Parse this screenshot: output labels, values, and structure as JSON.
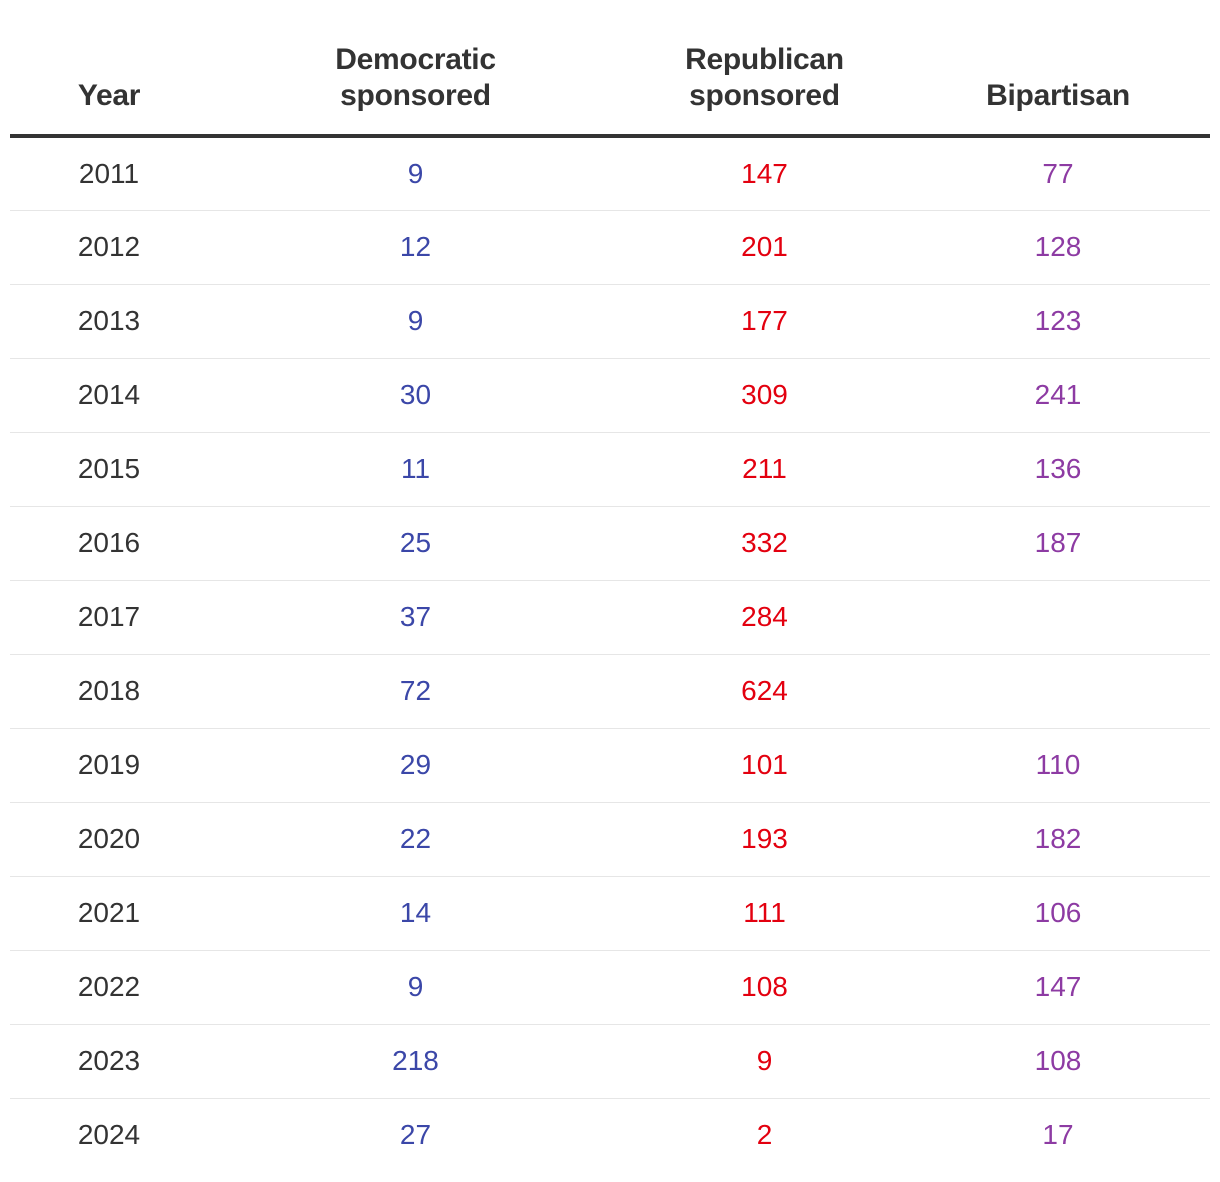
{
  "colors": {
    "header_text": "#333333",
    "year_text": "#333333",
    "democratic": "#3b47a8",
    "republican": "#e3000f",
    "bipartisan": "#8d3ba3",
    "row_divider": "#e6e6e6",
    "header_rule": "#333333"
  },
  "headers": {
    "year": "Year",
    "democratic_line1": "Democratic",
    "democratic_line2": "sponsored",
    "republican_line1": "Republican",
    "republican_line2": "sponsored",
    "bipartisan": "Bipartisan"
  },
  "chart_data": {
    "type": "table",
    "columns": [
      "Year",
      "Democratic sponsored",
      "Republican sponsored",
      "Bipartisan"
    ],
    "rows": [
      {
        "year": "2011",
        "democratic": "9",
        "republican": "147",
        "bipartisan": "77"
      },
      {
        "year": "2012",
        "democratic": "12",
        "republican": "201",
        "bipartisan": "128"
      },
      {
        "year": "2013",
        "democratic": "9",
        "republican": "177",
        "bipartisan": "123"
      },
      {
        "year": "2014",
        "democratic": "30",
        "republican": "309",
        "bipartisan": "241"
      },
      {
        "year": "2015",
        "democratic": "11",
        "republican": "211",
        "bipartisan": "136"
      },
      {
        "year": "2016",
        "democratic": "25",
        "republican": "332",
        "bipartisan": "187"
      },
      {
        "year": "2017",
        "democratic": "37",
        "republican": "284",
        "bipartisan": ""
      },
      {
        "year": "2018",
        "democratic": "72",
        "republican": "624",
        "bipartisan": ""
      },
      {
        "year": "2019",
        "democratic": "29",
        "republican": "101",
        "bipartisan": "110"
      },
      {
        "year": "2020",
        "democratic": "22",
        "republican": "193",
        "bipartisan": "182"
      },
      {
        "year": "2021",
        "democratic": "14",
        "republican": "111",
        "bipartisan": "106"
      },
      {
        "year": "2022",
        "democratic": "9",
        "republican": "108",
        "bipartisan": "147"
      },
      {
        "year": "2023",
        "democratic": "218",
        "republican": "9",
        "bipartisan": "108"
      },
      {
        "year": "2024",
        "democratic": "27",
        "republican": "2",
        "bipartisan": "17"
      }
    ]
  }
}
